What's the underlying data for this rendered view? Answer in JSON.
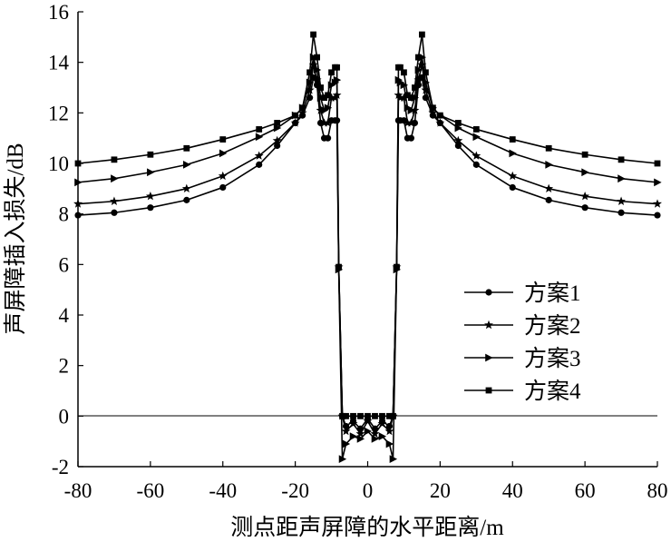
{
  "chart_data": {
    "type": "line",
    "xlabel": "测点距声屏障的水平距离/m",
    "ylabel": "声屏障插入损失/dB",
    "xlim": [
      -80,
      80
    ],
    "ylim": [
      -2,
      16
    ],
    "xticks": [
      -80,
      -60,
      -40,
      -20,
      0,
      20,
      40,
      60,
      80
    ],
    "yticks": [
      -2,
      0,
      2,
      4,
      6,
      8,
      10,
      12,
      14,
      16
    ],
    "grid": false,
    "legend_position": "right",
    "colors": {
      "line": "#000000"
    },
    "series": [
      {
        "name": "方案1",
        "marker": "circle",
        "x": [
          -80,
          -70,
          -60,
          -50,
          -40,
          -30,
          -25,
          -20,
          -18,
          -16,
          -15,
          -14,
          -13,
          -12,
          -11,
          -10,
          -9,
          -8.5,
          -8,
          -7,
          -6,
          -4,
          -2,
          0,
          2,
          4,
          6,
          7,
          8,
          8.5,
          9,
          10,
          11,
          12,
          13,
          14,
          15,
          16,
          18,
          20,
          25,
          30,
          40,
          50,
          60,
          70,
          80
        ],
        "y": [
          7.95,
          8.05,
          8.25,
          8.55,
          9.05,
          9.95,
          10.7,
          11.6,
          11.9,
          12.6,
          13.4,
          13.1,
          11.6,
          11.0,
          11.0,
          11.7,
          11.7,
          11.7,
          5.9,
          0.0,
          -0.4,
          -0.2,
          -0.5,
          -0.1,
          -0.5,
          -0.2,
          -0.4,
          0.0,
          5.9,
          11.7,
          11.7,
          11.7,
          11.0,
          11.0,
          11.6,
          13.1,
          13.4,
          12.6,
          11.9,
          11.6,
          10.7,
          9.95,
          9.05,
          8.55,
          8.25,
          8.05,
          7.95
        ]
      },
      {
        "name": "方案2",
        "marker": "star",
        "x": [
          -80,
          -70,
          -60,
          -50,
          -40,
          -30,
          -25,
          -20,
          -18,
          -16,
          -15,
          -14,
          -13,
          -12,
          -11,
          -10,
          -9,
          -8.5,
          -8,
          -7,
          -6,
          -4,
          -2,
          0,
          2,
          4,
          6,
          7,
          8,
          8.5,
          9,
          10,
          11,
          12,
          13,
          14,
          15,
          16,
          18,
          20,
          25,
          30,
          40,
          50,
          60,
          70,
          80
        ],
        "y": [
          8.4,
          8.5,
          8.7,
          9.0,
          9.5,
          10.3,
          10.9,
          11.6,
          12.0,
          12.9,
          13.9,
          13.3,
          12.1,
          11.6,
          11.6,
          12.6,
          12.6,
          12.7,
          5.9,
          0.0,
          -0.6,
          -0.3,
          -0.7,
          -0.2,
          -0.7,
          -0.3,
          -0.6,
          0.0,
          5.9,
          12.7,
          12.6,
          12.6,
          11.6,
          11.6,
          12.1,
          13.3,
          13.9,
          12.9,
          12.0,
          11.6,
          10.9,
          10.3,
          9.5,
          9.0,
          8.7,
          8.5,
          8.4
        ]
      },
      {
        "name": "方案3",
        "marker": "triangle-right",
        "x": [
          -80,
          -70,
          -60,
          -50,
          -40,
          -30,
          -25,
          -20,
          -18,
          -16,
          -15,
          -14,
          -13,
          -12,
          -11,
          -10,
          -9,
          -8.5,
          -8,
          -7,
          -6,
          -4,
          -2,
          0,
          2,
          4,
          6,
          7,
          8,
          8.5,
          9,
          10,
          11,
          12,
          13,
          14,
          15,
          16,
          18,
          20,
          25,
          30,
          40,
          50,
          60,
          70,
          80
        ],
        "y": [
          9.25,
          9.4,
          9.65,
          9.95,
          10.4,
          11.05,
          11.4,
          11.9,
          12.2,
          13.2,
          14.2,
          13.7,
          12.6,
          12.1,
          12.2,
          13.1,
          13.2,
          13.3,
          5.8,
          -1.7,
          -1.1,
          -0.8,
          -0.9,
          -0.6,
          -0.9,
          -0.8,
          -1.1,
          -1.7,
          5.8,
          13.3,
          13.2,
          13.1,
          12.2,
          12.1,
          12.6,
          13.7,
          14.2,
          13.2,
          12.2,
          11.9,
          11.4,
          11.05,
          10.4,
          9.95,
          9.65,
          9.4,
          9.25
        ]
      },
      {
        "name": "方案4",
        "marker": "square",
        "x": [
          -80,
          -70,
          -60,
          -50,
          -40,
          -30,
          -25,
          -20,
          -18,
          -16,
          -15,
          -14,
          -13,
          -12,
          -11,
          -10,
          -9,
          -8.5,
          -8,
          -7,
          -6,
          -4,
          -2,
          0,
          2,
          4,
          6,
          7,
          8,
          8.5,
          9,
          10,
          11,
          12,
          13,
          14,
          15,
          16,
          18,
          20,
          25,
          30,
          40,
          50,
          60,
          70,
          80
        ],
        "y": [
          10.0,
          10.15,
          10.35,
          10.6,
          10.95,
          11.35,
          11.6,
          11.9,
          12.2,
          13.6,
          15.1,
          14.2,
          13.0,
          12.6,
          12.7,
          13.6,
          13.8,
          13.8,
          5.9,
          0.0,
          0.0,
          0.0,
          0.0,
          0.0,
          0.0,
          0.0,
          0.0,
          0.0,
          5.9,
          13.8,
          13.8,
          13.6,
          12.7,
          12.6,
          13.0,
          14.2,
          15.1,
          13.6,
          12.2,
          11.9,
          11.6,
          11.35,
          10.95,
          10.6,
          10.35,
          10.15,
          10.0
        ]
      }
    ]
  }
}
